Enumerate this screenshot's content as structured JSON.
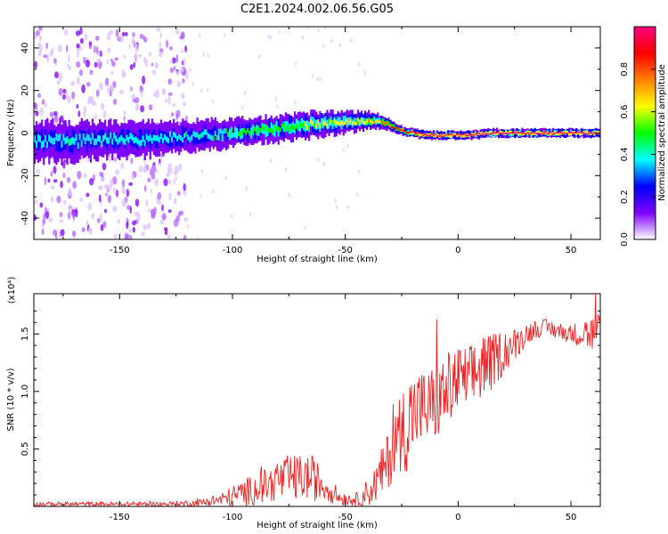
{
  "title": "C2E1.2024.002.06.56.G05",
  "chart_data": [
    {
      "type": "heatmap",
      "xlabel": "Height of straight line (km)",
      "ylabel": "Frequency (Hz)",
      "xlim": [
        -188,
        63
      ],
      "ylim": [
        -50,
        50
      ],
      "x_ticks": [
        -150,
        -100,
        -50,
        0,
        50
      ],
      "y_ticks": [
        -40,
        -20,
        0,
        20,
        40
      ],
      "colorbar": {
        "label": "Normalized spectral amplitude",
        "range": [
          0,
          1
        ],
        "ticks": [
          "0.0",
          "0.2",
          "0.4",
          "0.6",
          "0.8"
        ],
        "colors": [
          "#ffffff",
          "#7f00ff",
          "#0000ff",
          "#00ffff",
          "#00ff00",
          "#ffff00",
          "#ff7f00",
          "#ff0000",
          "#ff0080"
        ]
      },
      "ridge": {
        "x": [
          -188,
          -170,
          -155,
          -140,
          -125,
          -110,
          -95,
          -80,
          -65,
          -50,
          -40,
          -33,
          -25,
          -15,
          -5,
          5,
          15,
          30,
          45,
          63
        ],
        "center_hz": [
          -4,
          -4,
          -3,
          -3,
          -2,
          -1,
          1,
          2,
          4,
          5,
          6,
          5,
          1,
          -1,
          -1,
          -1,
          0,
          0,
          0,
          0
        ],
        "halfwidth_hz": [
          9,
          9,
          8,
          8,
          7,
          7,
          6,
          6,
          6,
          5,
          4,
          3,
          2,
          2,
          2,
          2,
          2,
          2,
          2,
          2
        ],
        "peak_amplitude": [
          0.3,
          0.35,
          0.3,
          0.3,
          0.35,
          0.35,
          0.4,
          0.45,
          0.5,
          0.55,
          0.6,
          0.65,
          0.85,
          0.9,
          0.9,
          0.9,
          0.95,
          0.95,
          0.95,
          0.95
        ]
      },
      "noise_region_x": [
        -188,
        -120
      ]
    },
    {
      "type": "line",
      "xlabel": "Height of straight line (km)",
      "ylabel": "SNR (10 * v/v)",
      "y_multiplier": "(x10⁴)",
      "xlim": [
        -188,
        63
      ],
      "ylim": [
        0,
        1.85
      ],
      "x_ticks": [
        -150,
        -100,
        -50,
        0,
        50
      ],
      "y_ticks": [
        "0.5",
        "1.0",
        "1.5"
      ],
      "series": [
        {
          "color": "#ee2222",
          "x": [
            -188,
            -170,
            -150,
            -130,
            -115,
            -105,
            -95,
            -85,
            -75,
            -65,
            -58,
            -52,
            -45,
            -38,
            -32,
            -27,
            -22,
            -18,
            -14,
            -10,
            -5,
            0,
            5,
            10,
            15,
            20,
            25,
            30,
            35,
            40,
            50,
            63
          ],
          "mean": [
            0.02,
            0.02,
            0.02,
            0.02,
            0.03,
            0.06,
            0.12,
            0.18,
            0.25,
            0.25,
            0.16,
            0.07,
            0.06,
            0.15,
            0.35,
            0.6,
            0.75,
            0.85,
            0.85,
            0.9,
            1.0,
            1.1,
            1.1,
            1.2,
            1.25,
            1.35,
            1.4,
            1.5,
            1.55,
            1.55,
            1.5,
            1.5
          ],
          "noise": [
            0.02,
            0.02,
            0.02,
            0.02,
            0.03,
            0.06,
            0.12,
            0.15,
            0.2,
            0.2,
            0.13,
            0.06,
            0.06,
            0.15,
            0.25,
            0.3,
            0.45,
            0.35,
            0.35,
            0.35,
            0.35,
            0.3,
            0.3,
            0.3,
            0.25,
            0.2,
            0.15,
            0.1,
            0.08,
            0.08,
            0.08,
            0.2
          ]
        }
      ]
    }
  ]
}
